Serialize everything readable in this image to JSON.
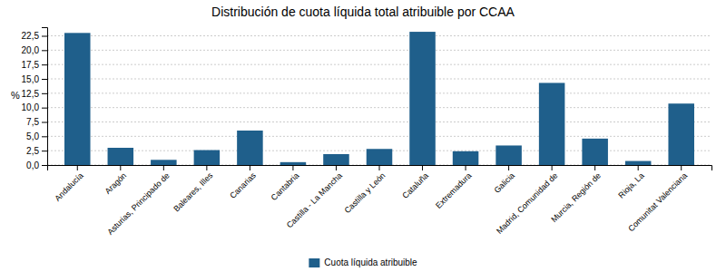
{
  "chart_data": {
    "type": "bar",
    "title": "Distribución de cuota líquida total atribuible por CCAA",
    "ylabel": "%",
    "categories": [
      "Andalucía",
      "Aragón",
      "Asturias, Principado de",
      "Baleares, Illes",
      "Canarias",
      "Cantabria",
      "Castilla - La Mancha",
      "Castilla y León",
      "Cataluña",
      "Extremadura",
      "Galicia",
      "Madrid, Comunidad de",
      "Murcia, Región de",
      "Rioja, La",
      "Comunitat Valenciana"
    ],
    "series": [
      {
        "name": "Cuota líquida atribuible",
        "color": "#1F5F8B",
        "values": [
          23.0,
          3.0,
          0.9,
          2.6,
          6.0,
          0.5,
          1.9,
          2.8,
          23.2,
          2.4,
          3.4,
          14.3,
          4.6,
          0.7,
          10.7
        ]
      }
    ],
    "ylim": [
      0,
      24
    ],
    "yticks": [
      {
        "value": 0.0,
        "label": "0,0"
      },
      {
        "value": 2.5,
        "label": "2,5"
      },
      {
        "value": 5.0,
        "label": "5,0"
      },
      {
        "value": 7.5,
        "label": "7,5"
      },
      {
        "value": 10.0,
        "label": "10,0"
      },
      {
        "value": 12.5,
        "label": "12,5"
      },
      {
        "value": 15.0,
        "label": "15,0"
      },
      {
        "value": 17.5,
        "label": "17,5"
      },
      {
        "value": 20.0,
        "label": "20,0"
      },
      {
        "value": 22.5,
        "label": "22,5"
      }
    ],
    "grid": true,
    "legend": "bottom"
  }
}
